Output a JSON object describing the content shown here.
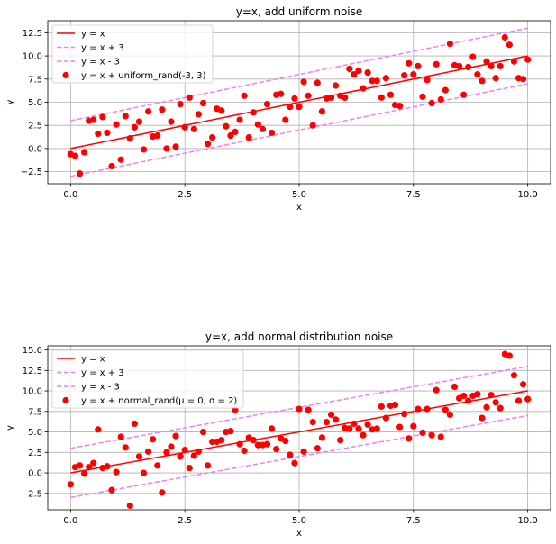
{
  "chart_data": [
    {
      "type": "scatter",
      "title": "y=x, add uniform noise",
      "xlabel": "x",
      "ylabel": "y",
      "xlim": [
        -0.5,
        10.5
      ],
      "ylim": [
        -3.8,
        13.8
      ],
      "xticks": [
        0.0,
        2.5,
        5.0,
        7.5,
        10.0
      ],
      "xtick_labels": [
        "0.0",
        "2.5",
        "5.0",
        "7.5",
        "10.0"
      ],
      "yticks": [
        -2.5,
        0.0,
        2.5,
        5.0,
        7.5,
        10.0,
        12.5
      ],
      "ytick_labels": [
        "−2.5",
        "0.0",
        "2.5",
        "5.0",
        "7.5",
        "10.0",
        "12.5"
      ],
      "grid": true,
      "legend_position": "top-left",
      "lines": [
        {
          "name": "y = x",
          "offset": 0,
          "color": "#ff0000",
          "style": "solid"
        },
        {
          "name": "y = x + 3",
          "offset": 3,
          "color": "#ee82ee",
          "style": "dashed"
        },
        {
          "name": "y = x - 3",
          "offset": -3,
          "color": "#ee82ee",
          "style": "dashed"
        }
      ],
      "scatter": {
        "name": "y = x + uniform_rand(-3, 3)",
        "color": "#ff0000",
        "points": [
          [
            0.0,
            -0.6
          ],
          [
            0.1,
            -0.8
          ],
          [
            0.2,
            -2.7
          ],
          [
            0.3,
            -0.4
          ],
          [
            0.4,
            3.0
          ],
          [
            0.5,
            3.1
          ],
          [
            0.6,
            1.6
          ],
          [
            0.7,
            3.4
          ],
          [
            0.8,
            1.7
          ],
          [
            0.9,
            -1.9
          ],
          [
            1.0,
            2.6
          ],
          [
            1.1,
            -1.2
          ],
          [
            1.2,
            3.5
          ],
          [
            1.3,
            1.1
          ],
          [
            1.4,
            2.3
          ],
          [
            1.5,
            2.9
          ],
          [
            1.6,
            -0.1
          ],
          [
            1.7,
            4.0
          ],
          [
            1.8,
            1.3
          ],
          [
            1.9,
            1.4
          ],
          [
            2.0,
            4.2
          ],
          [
            2.1,
            0.0
          ],
          [
            2.2,
            2.9
          ],
          [
            2.3,
            0.2
          ],
          [
            2.4,
            4.8
          ],
          [
            2.5,
            2.3
          ],
          [
            2.6,
            5.5
          ],
          [
            2.7,
            2.1
          ],
          [
            2.8,
            3.7
          ],
          [
            2.9,
            4.9
          ],
          [
            3.0,
            0.5
          ],
          [
            3.1,
            1.2
          ],
          [
            3.2,
            4.3
          ],
          [
            3.3,
            4.1
          ],
          [
            3.4,
            2.4
          ],
          [
            3.5,
            1.4
          ],
          [
            3.6,
            1.8
          ],
          [
            3.7,
            3.1
          ],
          [
            3.8,
            5.7
          ],
          [
            3.9,
            1.2
          ],
          [
            4.0,
            3.9
          ],
          [
            4.1,
            2.6
          ],
          [
            4.2,
            2.1
          ],
          [
            4.3,
            4.8
          ],
          [
            4.4,
            1.7
          ],
          [
            4.5,
            5.8
          ],
          [
            4.6,
            5.9
          ],
          [
            4.7,
            3.1
          ],
          [
            4.8,
            4.5
          ],
          [
            4.9,
            5.4
          ],
          [
            5.0,
            4.5
          ],
          [
            5.1,
            7.2
          ],
          [
            5.2,
            5.7
          ],
          [
            5.3,
            2.5
          ],
          [
            5.4,
            7.1
          ],
          [
            5.5,
            4.0
          ],
          [
            5.6,
            5.4
          ],
          [
            5.7,
            5.5
          ],
          [
            5.8,
            6.8
          ],
          [
            5.9,
            5.7
          ],
          [
            6.0,
            5.5
          ],
          [
            6.1,
            8.6
          ],
          [
            6.2,
            8.0
          ],
          [
            6.3,
            8.4
          ],
          [
            6.4,
            6.5
          ],
          [
            6.5,
            8.2
          ],
          [
            6.6,
            7.3
          ],
          [
            6.7,
            7.3
          ],
          [
            6.8,
            5.5
          ],
          [
            6.9,
            7.6
          ],
          [
            7.0,
            5.8
          ],
          [
            7.1,
            4.7
          ],
          [
            7.2,
            4.6
          ],
          [
            7.3,
            7.9
          ],
          [
            7.4,
            9.2
          ],
          [
            7.5,
            8.0
          ],
          [
            7.6,
            8.9
          ],
          [
            7.7,
            5.6
          ],
          [
            7.8,
            7.4
          ],
          [
            7.9,
            4.9
          ],
          [
            8.0,
            9.1
          ],
          [
            8.1,
            5.3
          ],
          [
            8.2,
            6.3
          ],
          [
            8.3,
            11.3
          ],
          [
            8.4,
            9.0
          ],
          [
            8.5,
            8.9
          ],
          [
            8.6,
            5.8
          ],
          [
            8.7,
            8.8
          ],
          [
            8.8,
            9.9
          ],
          [
            8.9,
            8.0
          ],
          [
            9.0,
            7.3
          ],
          [
            9.1,
            9.4
          ],
          [
            9.2,
            8.9
          ],
          [
            9.3,
            7.6
          ],
          [
            9.4,
            8.9
          ],
          [
            9.5,
            12.0
          ],
          [
            9.6,
            11.2
          ],
          [
            9.7,
            9.4
          ],
          [
            9.8,
            7.6
          ],
          [
            9.9,
            7.5
          ],
          [
            10.0,
            9.6
          ]
        ]
      }
    },
    {
      "type": "scatter",
      "title": "y=x, add normal distribution noise",
      "xlabel": "x",
      "ylabel": "y",
      "xlim": [
        -0.5,
        10.5
      ],
      "ylim": [
        -4.5,
        15.5
      ],
      "xticks": [
        0.0,
        2.5,
        5.0,
        7.5,
        10.0
      ],
      "xtick_labels": [
        "0.0",
        "2.5",
        "5.0",
        "7.5",
        "10.0"
      ],
      "yticks": [
        -2.5,
        0.0,
        2.5,
        5.0,
        7.5,
        10.0,
        12.5,
        15.0
      ],
      "ytick_labels": [
        "−2.5",
        "0.0",
        "2.5",
        "5.0",
        "7.5",
        "10.0",
        "12.5",
        "15.0"
      ],
      "grid": true,
      "legend_position": "top-left",
      "lines": [
        {
          "name": "y = x",
          "offset": 0,
          "color": "#ff0000",
          "style": "solid"
        },
        {
          "name": "y = x + 3",
          "offset": 3,
          "color": "#ee82ee",
          "style": "dashed"
        },
        {
          "name": "y = x - 3",
          "offset": -3,
          "color": "#ee82ee",
          "style": "dashed"
        }
      ],
      "scatter": {
        "name": "y = x + normal_rand(μ = 0, σ = 2)",
        "color": "#ff0000",
        "points": [
          [
            0.0,
            -1.4
          ],
          [
            0.1,
            0.7
          ],
          [
            0.2,
            0.9
          ],
          [
            0.3,
            -0.1
          ],
          [
            0.4,
            0.7
          ],
          [
            0.5,
            1.2
          ],
          [
            0.6,
            5.3
          ],
          [
            0.7,
            0.6
          ],
          [
            0.8,
            0.8
          ],
          [
            0.9,
            -2.1
          ],
          [
            1.0,
            0.1
          ],
          [
            1.1,
            4.4
          ],
          [
            1.2,
            3.1
          ],
          [
            1.3,
            -4.0
          ],
          [
            1.4,
            6.0
          ],
          [
            1.5,
            2.0
          ],
          [
            1.6,
            0.0
          ],
          [
            1.7,
            2.6
          ],
          [
            1.8,
            4.1
          ],
          [
            1.9,
            0.9
          ],
          [
            2.0,
            -2.4
          ],
          [
            2.1,
            2.5
          ],
          [
            2.2,
            3.2
          ],
          [
            2.3,
            4.5
          ],
          [
            2.4,
            2.0
          ],
          [
            2.5,
            2.8
          ],
          [
            2.6,
            0.6
          ],
          [
            2.7,
            2.1
          ],
          [
            2.8,
            2.6
          ],
          [
            2.9,
            5.0
          ],
          [
            3.0,
            0.9
          ],
          [
            3.1,
            3.8
          ],
          [
            3.2,
            3.8
          ],
          [
            3.3,
            4.0
          ],
          [
            3.4,
            5.0
          ],
          [
            3.5,
            5.1
          ],
          [
            3.6,
            7.7
          ],
          [
            3.7,
            3.5
          ],
          [
            3.8,
            2.7
          ],
          [
            3.9,
            4.3
          ],
          [
            4.0,
            4.0
          ],
          [
            4.1,
            3.4
          ],
          [
            4.2,
            3.4
          ],
          [
            4.3,
            3.5
          ],
          [
            4.4,
            5.4
          ],
          [
            4.5,
            2.9
          ],
          [
            4.6,
            4.2
          ],
          [
            4.7,
            3.9
          ],
          [
            4.8,
            2.2
          ],
          [
            4.9,
            1.2
          ],
          [
            5.0,
            7.8
          ],
          [
            5.1,
            2.6
          ],
          [
            5.2,
            7.7
          ],
          [
            5.3,
            6.2
          ],
          [
            5.4,
            3.0
          ],
          [
            5.5,
            4.3
          ],
          [
            5.6,
            6.2
          ],
          [
            5.7,
            7.1
          ],
          [
            5.8,
            6.5
          ],
          [
            5.9,
            4.0
          ],
          [
            6.0,
            5.5
          ],
          [
            6.1,
            5.4
          ],
          [
            6.2,
            6.0
          ],
          [
            6.3,
            5.4
          ],
          [
            6.4,
            4.6
          ],
          [
            6.5,
            5.9
          ],
          [
            6.6,
            5.3
          ],
          [
            6.7,
            5.4
          ],
          [
            6.8,
            8.1
          ],
          [
            6.9,
            6.7
          ],
          [
            7.0,
            8.2
          ],
          [
            7.1,
            8.3
          ],
          [
            7.2,
            5.6
          ],
          [
            7.3,
            7.2
          ],
          [
            7.4,
            4.2
          ],
          [
            7.5,
            5.7
          ],
          [
            7.6,
            7.8
          ],
          [
            7.7,
            4.9
          ],
          [
            7.8,
            7.8
          ],
          [
            7.9,
            4.6
          ],
          [
            8.0,
            10.1
          ],
          [
            8.1,
            4.4
          ],
          [
            8.2,
            7.7
          ],
          [
            8.3,
            7.1
          ],
          [
            8.4,
            10.5
          ],
          [
            8.5,
            9.1
          ],
          [
            8.6,
            9.4
          ],
          [
            8.7,
            8.8
          ],
          [
            8.8,
            9.4
          ],
          [
            8.9,
            9.6
          ],
          [
            9.0,
            6.7
          ],
          [
            9.1,
            8.0
          ],
          [
            9.2,
            9.5
          ],
          [
            9.3,
            8.6
          ],
          [
            9.4,
            7.9
          ],
          [
            9.5,
            14.5
          ],
          [
            9.6,
            14.3
          ],
          [
            9.7,
            11.9
          ],
          [
            9.8,
            8.8
          ],
          [
            9.9,
            10.8
          ],
          [
            10.0,
            9.0
          ]
        ]
      }
    }
  ]
}
